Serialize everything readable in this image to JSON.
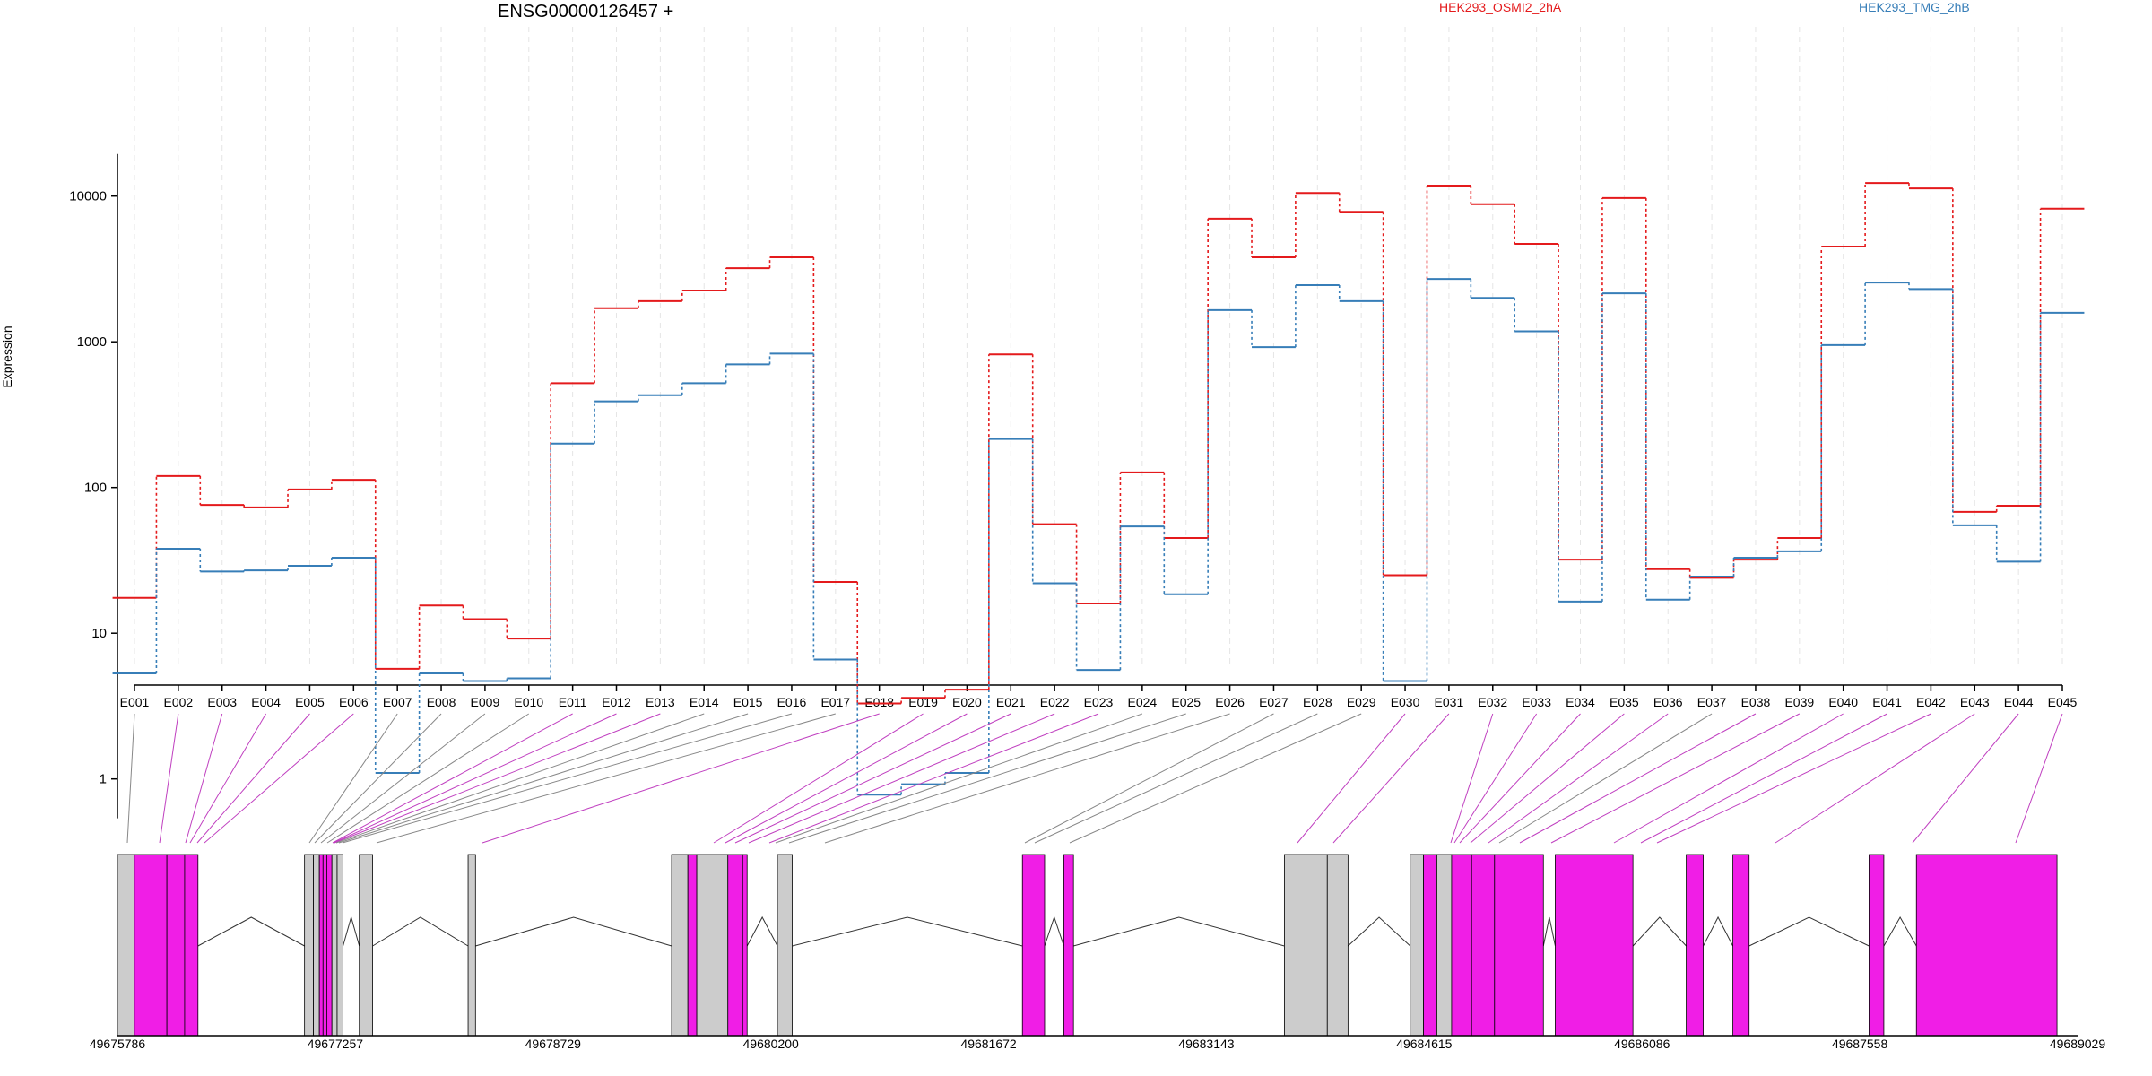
{
  "chart_data": {
    "type": "line",
    "title": "ENSG00000126457 +",
    "ylabel": "Expression",
    "yscale": "log",
    "ylim": [
      0.5,
      20000
    ],
    "yticks": [
      1,
      10,
      100,
      1000,
      10000
    ],
    "ytick_labels": [
      "1",
      "10",
      "100",
      "1000",
      "10000"
    ],
    "categories": [
      "E001",
      "E002",
      "E003",
      "E004",
      "E005",
      "E006",
      "E007",
      "E008",
      "E009",
      "E010",
      "E011",
      "E012",
      "E013",
      "E014",
      "E015",
      "E016",
      "E017",
      "E018",
      "E019",
      "E020",
      "E021",
      "E022",
      "E023",
      "E024",
      "E025",
      "E026",
      "E027",
      "E028",
      "E029",
      "E030",
      "E031",
      "E032",
      "E033",
      "E034",
      "E035",
      "E036",
      "E037",
      "E038",
      "E039",
      "E040",
      "E041",
      "E042",
      "E043",
      "E044",
      "E045"
    ],
    "series": [
      {
        "name": "HEK293_OSMI2_2hA",
        "color": "#E41A1C",
        "values": [
          17.5,
          120,
          76,
          73,
          97,
          113,
          5.7,
          15.5,
          12.5,
          9.2,
          520,
          1700,
          1900,
          2250,
          3200,
          3800,
          22.5,
          3.3,
          3.6,
          4.1,
          820,
          56,
          16,
          127,
          45,
          7000,
          3800,
          10500,
          7800,
          25,
          11800,
          8800,
          4700,
          32,
          9700,
          27.5,
          24,
          32,
          45,
          4500,
          12300,
          11300,
          68,
          75,
          8200
        ]
      },
      {
        "name": "HEK293_TMG_2hB",
        "color": "#377EB8",
        "values": [
          5.3,
          38,
          26.5,
          27,
          29,
          33,
          1.1,
          5.3,
          4.7,
          4.9,
          200,
          390,
          430,
          520,
          700,
          830,
          6.6,
          0.78,
          0.92,
          1.1,
          215,
          22,
          5.6,
          54,
          18.5,
          1650,
          920,
          2450,
          1900,
          4.7,
          2700,
          2000,
          1180,
          16.5,
          2150,
          17,
          24.5,
          33,
          36.5,
          950,
          2550,
          2300,
          55,
          31,
          1580
        ]
      }
    ],
    "exon_highlight": [
      false,
      true,
      true,
      true,
      true,
      true,
      false,
      false,
      false,
      false,
      true,
      true,
      true,
      false,
      false,
      false,
      false,
      true,
      true,
      true,
      true,
      true,
      true,
      false,
      false,
      false,
      false,
      false,
      false,
      true,
      true,
      true,
      true,
      true,
      true,
      true,
      false,
      true,
      true,
      true,
      true,
      true,
      true,
      true,
      true
    ],
    "genomic_axis": {
      "start": 49675786,
      "end": 49689029,
      "tick_labels": [
        "49675786",
        "49677257",
        "49678729",
        "49680200",
        "49681672",
        "49683143",
        "49684615",
        "49686086",
        "49687558",
        "49689029"
      ]
    },
    "gene_model_exons": [
      [
        49675786,
        49675900,
        "gray"
      ],
      [
        49675900,
        49676120,
        "magenta"
      ],
      [
        49676120,
        49676240,
        "magenta"
      ],
      [
        49676240,
        49676330,
        "magenta"
      ],
      [
        49677050,
        49677110,
        "gray"
      ],
      [
        49677110,
        49677150,
        "gray"
      ],
      [
        49677150,
        49677175,
        "magenta"
      ],
      [
        49677175,
        49677200,
        "magenta"
      ],
      [
        49677200,
        49677235,
        "magenta"
      ],
      [
        49677235,
        49677270,
        "gray"
      ],
      [
        49677270,
        49677310,
        "gray"
      ],
      [
        49677420,
        49677510,
        "gray"
      ],
      [
        49678155,
        49678205,
        "gray"
      ],
      [
        49679530,
        49679640,
        "gray"
      ],
      [
        49679640,
        49679700,
        "magenta"
      ],
      [
        49679700,
        49679910,
        "gray"
      ],
      [
        49679910,
        49680010,
        "magenta"
      ],
      [
        49680010,
        49680040,
        "magenta"
      ],
      [
        49680245,
        49680345,
        "gray"
      ],
      [
        49681900,
        49682050,
        "magenta"
      ],
      [
        49682180,
        49682245,
        "magenta"
      ],
      [
        49683670,
        49683960,
        "gray"
      ],
      [
        49683960,
        49684100,
        "gray"
      ],
      [
        49684520,
        49684610,
        "gray"
      ],
      [
        49684610,
        49684700,
        "magenta"
      ],
      [
        49684700,
        49684800,
        "gray"
      ],
      [
        49684800,
        49684935,
        "magenta"
      ],
      [
        49684935,
        49685090,
        "magenta"
      ],
      [
        49685090,
        49685420,
        "magenta"
      ],
      [
        49685500,
        49685870,
        "magenta"
      ],
      [
        49685870,
        49686025,
        "magenta"
      ],
      [
        49686385,
        49686500,
        "magenta"
      ],
      [
        49686700,
        49686810,
        "magenta"
      ],
      [
        49687620,
        49687720,
        "magenta"
      ],
      [
        49687940,
        49688890,
        "magenta"
      ]
    ]
  }
}
